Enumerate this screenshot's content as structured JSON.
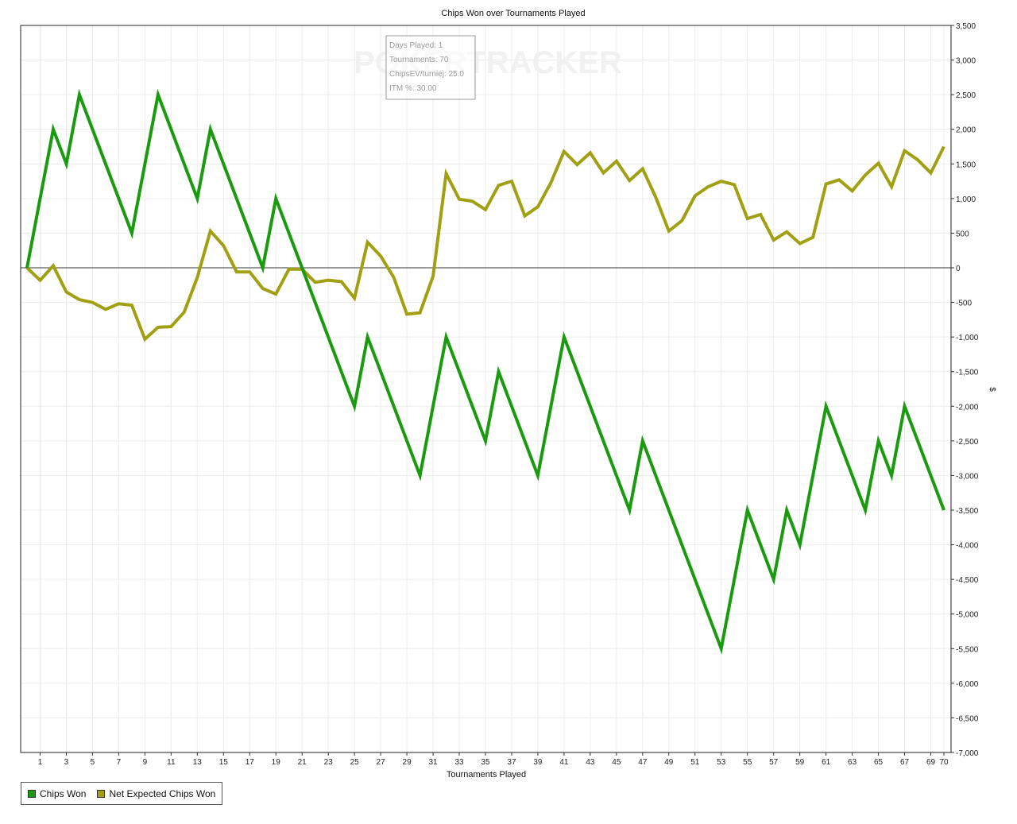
{
  "chart_data": {
    "type": "line",
    "title": "Chips Won over Tournaments Played",
    "xlabel": "Tournaments Played",
    "ylabel": "$",
    "xlim": [
      0,
      70
    ],
    "ylim": [
      -7000,
      3500
    ],
    "x_ticks": [
      1,
      3,
      5,
      7,
      9,
      11,
      13,
      15,
      17,
      19,
      21,
      23,
      25,
      27,
      29,
      31,
      33,
      35,
      37,
      39,
      41,
      43,
      45,
      47,
      49,
      51,
      53,
      55,
      57,
      59,
      61,
      63,
      65,
      67,
      69,
      70
    ],
    "y_ticks": [
      3500,
      3000,
      2500,
      2000,
      1500,
      1000,
      500,
      0,
      -500,
      -1000,
      -1500,
      -2000,
      -2500,
      -3000,
      -3500,
      -4000,
      -4500,
      -5000,
      -5500,
      -6000,
      -6500,
      -7000
    ],
    "y_tick_labels": [
      "3,500",
      "3,000",
      "2,500",
      "2,000",
      "1,500",
      "1,000",
      "500",
      "0",
      "-500",
      "-1,000",
      "-1,500",
      "-2,000",
      "-2,500",
      "-3,000",
      "-3,500",
      "-4,000",
      "-4,500",
      "-5,000",
      "-5,500",
      "-6,000",
      "-6,500",
      "-7,000"
    ],
    "grid": true,
    "legend_position": "bottom-left",
    "series": [
      {
        "name": "Chips Won",
        "color": "#1a9a0e",
        "x": [
          0,
          2,
          3,
          4,
          8,
          10,
          13,
          14,
          18,
          19,
          25,
          26,
          30,
          32,
          35,
          36,
          39,
          41,
          46,
          47,
          53,
          55,
          57,
          58,
          59,
          61,
          64,
          65,
          66,
          67,
          70
        ],
        "values": [
          0,
          2000,
          1500,
          2500,
          500,
          2500,
          1000,
          2000,
          0,
          1000,
          -2000,
          -1000,
          -3000,
          -1000,
          -2500,
          -1500,
          -3000,
          -1000,
          -3500,
          -2500,
          -5500,
          -3500,
          -4500,
          -3500,
          -4000,
          -2000,
          -3500,
          -2500,
          -3000,
          -2000,
          -3500
        ]
      },
      {
        "name": "Net Expected Chips Won",
        "color": "#a0a012",
        "x": [
          0,
          1,
          2,
          3,
          4,
          5,
          6,
          7,
          8,
          9,
          10,
          11,
          12,
          13,
          14,
          15,
          16,
          17,
          18,
          19,
          20,
          21,
          22,
          23,
          24,
          25,
          26,
          27,
          28,
          29,
          30,
          31,
          32,
          33,
          34,
          35,
          36,
          37,
          38,
          39,
          40,
          41,
          42,
          43,
          44,
          45,
          46,
          47,
          48,
          49,
          50,
          51,
          52,
          53,
          54,
          55,
          56,
          57,
          58,
          59,
          60,
          61,
          62,
          63,
          64,
          65,
          66,
          67,
          68,
          69,
          70
        ],
        "values": [
          0,
          -180,
          30,
          -350,
          -460,
          -500,
          -600,
          -520,
          -540,
          -1030,
          -860,
          -850,
          -640,
          -140,
          530,
          320,
          -60,
          -60,
          -300,
          -380,
          -20,
          -20,
          -210,
          -180,
          -200,
          -440,
          370,
          170,
          -140,
          -670,
          -650,
          -120,
          1360,
          990,
          960,
          840,
          1190,
          1250,
          750,
          880,
          1230,
          1680,
          1490,
          1660,
          1370,
          1540,
          1260,
          1430,
          1020,
          530,
          680,
          1040,
          1170,
          1250,
          1200,
          710,
          770,
          400,
          520,
          350,
          440,
          1210,
          1270,
          1110,
          1340,
          1510,
          1170,
          1690,
          1560,
          1370,
          1750
        ]
      }
    ],
    "info_box": {
      "lines": [
        "Days Played: 1",
        "Tournaments: 70",
        "ChipsEV/turniej: 25.0",
        "ITM %: 30.00"
      ]
    },
    "watermark": "POKERTRACKER"
  }
}
